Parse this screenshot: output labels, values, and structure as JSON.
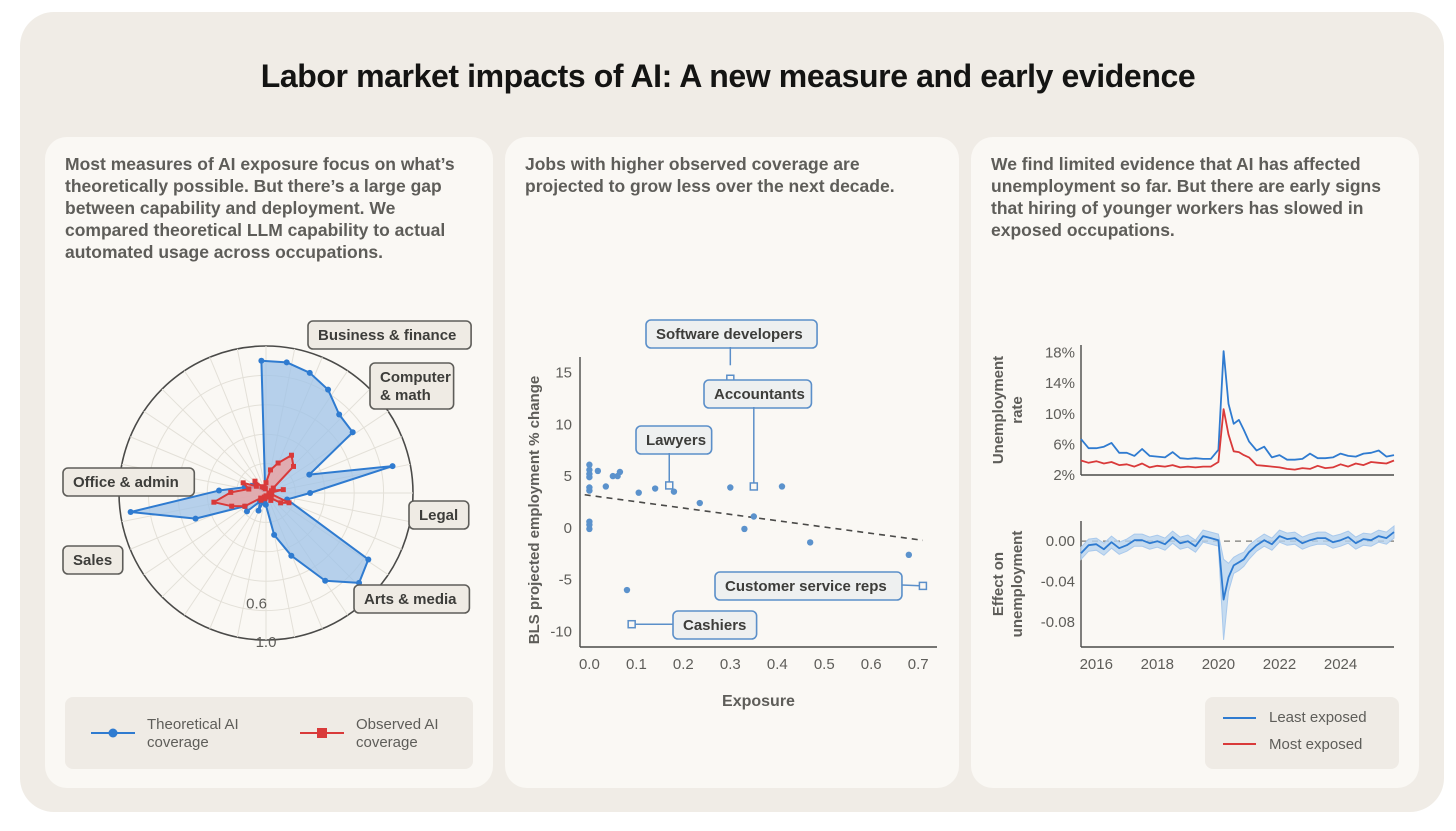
{
  "title": "Labor market impacts of AI: A new measure and early evidence",
  "panels": [
    {
      "text": "Most measures of AI exposure focus on what’s theoretically possible. But there’s a large gap between capability and deployment. We compared theoretical LLM capability to actual automated usage across occupations."
    },
    {
      "text": "Jobs with higher observed coverage are projected to grow less over the next decade."
    },
    {
      "text": "We find limited evidence that AI has affected unemployment so far. But there are early signs that hiring of younger workers has slowed in exposed occupations."
    }
  ],
  "colors": {
    "blue": "#2f7bd0",
    "blue_fill": "#9fc3e8",
    "red": "#d93a3a",
    "red_fill": "#eba3a3",
    "point": "#5b92cc",
    "grid": "#e3e0d8",
    "axis": "#4a4a48",
    "label_bg": "#efebe4",
    "label_border": "#5e5d59",
    "callout_border": "#5b8fc9",
    "callout_bg": "#eef0f0"
  },
  "chart_data": [
    {
      "type": "radar",
      "radial_tick_labels": [
        "0.6",
        "1.0"
      ],
      "rmax": 1.0,
      "category_labels": [
        "Business & finance",
        "Computer & math",
        "Legal",
        "Arts & media",
        "Sales",
        "Office & admin"
      ],
      "series": [
        {
          "name": "Theoretical AI coverage",
          "points": [
            [
              -2,
              0.9
            ],
            [
              9,
              0.9
            ],
            [
              20,
              0.87
            ],
            [
              31,
              0.82
            ],
            [
              43,
              0.73
            ],
            [
              55,
              0.72
            ],
            [
              67,
              0.32
            ],
            [
              78,
              0.88
            ],
            [
              90,
              0.3
            ],
            [
              107,
              0.15
            ],
            [
              123,
              0.83
            ],
            [
              134,
              0.88
            ],
            [
              146,
              0.72
            ],
            [
              158,
              0.46
            ],
            [
              169,
              0.29
            ],
            [
              181,
              0.08
            ],
            [
              192,
              0.05
            ],
            [
              203,
              0.13
            ],
            [
              215,
              0.07
            ],
            [
              226,
              0.18
            ],
            [
              238,
              0.17
            ],
            [
              250,
              0.51
            ],
            [
              262,
              0.93
            ],
            [
              273,
              0.32
            ],
            [
              285,
              0.15
            ],
            [
              296,
              0.11
            ],
            [
              308,
              0.09
            ],
            [
              320,
              0.05
            ],
            [
              331,
              0.03
            ],
            [
              342,
              0.03
            ],
            [
              351,
              0.04
            ]
          ]
        },
        {
          "name": "Observed AI coverage",
          "points": [
            [
              0,
              0.07
            ],
            [
              11,
              0.16
            ],
            [
              22,
              0.22
            ],
            [
              34,
              0.31
            ],
            [
              46,
              0.26
            ],
            [
              56,
              0.06
            ],
            [
              68,
              0.04
            ],
            [
              79,
              0.12
            ],
            [
              90,
              0.02
            ],
            [
              102,
              0.04
            ],
            [
              113,
              0.17
            ],
            [
              124,
              0.12
            ],
            [
              135,
              0.05
            ],
            [
              147,
              0.06
            ],
            [
              158,
              0.03
            ],
            [
              170,
              0.02
            ],
            [
              181,
              0.02
            ],
            [
              192,
              0.04
            ],
            [
              203,
              0.03
            ],
            [
              215,
              0.06
            ],
            [
              226,
              0.05
            ],
            [
              238,
              0.17
            ],
            [
              249,
              0.25
            ],
            [
              260,
              0.36
            ],
            [
              271,
              0.24
            ],
            [
              283,
              0.12
            ],
            [
              294,
              0.17
            ],
            [
              305,
              0.08
            ],
            [
              317,
              0.11
            ],
            [
              328,
              0.05
            ],
            [
              340,
              0.04
            ],
            [
              351,
              0.03
            ]
          ]
        }
      ],
      "legend": [
        "Theoretical AI coverage",
        "Observed AI coverage"
      ]
    },
    {
      "type": "scatter",
      "xlabel": "Exposure",
      "ylabel": "BLS projected employment % change",
      "xlim": [
        -0.02,
        0.74
      ],
      "ylim": [
        -11.5,
        16.5
      ],
      "x_ticks": [
        "0.0",
        "0.1",
        "0.2",
        "0.3",
        "0.4",
        "0.5",
        "0.6",
        "0.7"
      ],
      "y_ticks": [
        "15",
        "10",
        "5",
        "0",
        "-5",
        "-10"
      ],
      "points": [
        [
          0.0,
          6.1
        ],
        [
          0.0,
          5.6
        ],
        [
          0.0,
          5.2
        ],
        [
          0.0,
          4.9
        ],
        [
          0.0,
          3.9
        ],
        [
          0.0,
          3.6
        ],
        [
          0.0,
          0.6
        ],
        [
          0.0,
          0.3
        ],
        [
          0.0,
          -0.1
        ],
        [
          0.018,
          5.5
        ],
        [
          0.035,
          4.0
        ],
        [
          0.05,
          5.0
        ],
        [
          0.06,
          5.0
        ],
        [
          0.065,
          5.4
        ],
        [
          0.08,
          -6.0
        ],
        [
          0.105,
          3.4
        ],
        [
          0.14,
          3.8
        ],
        [
          0.18,
          3.5
        ],
        [
          0.235,
          2.4
        ],
        [
          0.3,
          3.9
        ],
        [
          0.33,
          -0.1
        ],
        [
          0.35,
          1.1
        ],
        [
          0.41,
          4.0
        ],
        [
          0.47,
          -1.4
        ],
        [
          0.68,
          -2.6
        ]
      ],
      "trend_line": {
        "x": [
          -0.01,
          0.71
        ],
        "y": [
          3.2,
          -1.2
        ]
      },
      "callouts": [
        {
          "label": "Software developers",
          "x": 0.3,
          "y": 15.7
        },
        {
          "label": "Accountants",
          "x": 0.35,
          "y": 4.0
        },
        {
          "label": "Lawyers",
          "x": 0.17,
          "y": 4.1
        },
        {
          "label": "Customer service reps",
          "x": 0.71,
          "y": -5.6
        },
        {
          "label": "Cashiers",
          "x": 0.09,
          "y": -9.3
        }
      ]
    },
    {
      "type": "line",
      "ylabel": "Unemployment rate",
      "y_ticks": [
        "18%",
        "14%",
        "10%",
        "6%",
        "2%"
      ],
      "ylim": [
        2,
        19
      ],
      "series": [
        {
          "name": "Least exposed",
          "x": [
            2015.5,
            2015.75,
            2016.0,
            2016.25,
            2016.5,
            2016.75,
            2017.0,
            2017.25,
            2017.5,
            2017.75,
            2018.0,
            2018.25,
            2018.5,
            2018.75,
            2019.0,
            2019.25,
            2019.5,
            2019.75,
            2020.0,
            2020.17,
            2020.33,
            2020.5,
            2020.67,
            2020.83,
            2021.0,
            2021.25,
            2021.5,
            2021.75,
            2022.0,
            2022.25,
            2022.5,
            2022.75,
            2023.0,
            2023.25,
            2023.5,
            2023.75,
            2024.0,
            2024.25,
            2024.5,
            2024.75,
            2025.0,
            2025.25,
            2025.5,
            2025.75
          ],
          "values": [
            6.7,
            5.5,
            5.5,
            5.7,
            6.2,
            4.9,
            4.9,
            4.5,
            5.4,
            4.5,
            4.4,
            4.3,
            5.0,
            4.2,
            4.1,
            4.2,
            4.1,
            4.1,
            5.3,
            18.2,
            11.3,
            8.7,
            9.2,
            7.9,
            6.4,
            5.2,
            5.7,
            4.3,
            4.6,
            4.0,
            4.0,
            4.1,
            4.8,
            4.2,
            4.2,
            4.3,
            4.8,
            4.5,
            4.4,
            4.8,
            4.9,
            5.2,
            4.4,
            4.6
          ]
        },
        {
          "name": "Most exposed",
          "x": [
            2015.5,
            2015.75,
            2016.0,
            2016.25,
            2016.5,
            2016.75,
            2017.0,
            2017.25,
            2017.5,
            2017.75,
            2018.0,
            2018.25,
            2018.5,
            2018.75,
            2019.0,
            2019.25,
            2019.5,
            2019.75,
            2020.0,
            2020.17,
            2020.33,
            2020.5,
            2020.67,
            2020.83,
            2021.0,
            2021.25,
            2021.5,
            2021.75,
            2022.0,
            2022.25,
            2022.5,
            2022.75,
            2023.0,
            2023.25,
            2023.5,
            2023.75,
            2024.0,
            2024.25,
            2024.5,
            2024.75,
            2025.0,
            2025.25,
            2025.5,
            2025.75
          ],
          "values": [
            3.9,
            3.6,
            3.8,
            3.5,
            3.7,
            3.3,
            3.4,
            3.1,
            3.5,
            3.0,
            3.2,
            3.1,
            3.3,
            3.0,
            3.1,
            3.0,
            3.1,
            3.1,
            3.7,
            10.6,
            7.3,
            5.1,
            5.0,
            4.6,
            4.3,
            3.3,
            3.2,
            3.1,
            3.0,
            2.8,
            2.7,
            2.9,
            2.8,
            3.2,
            2.9,
            3.0,
            3.4,
            3.1,
            3.5,
            3.3,
            3.7,
            3.6,
            3.5,
            3.9
          ]
        }
      ],
      "legend": [
        "Least exposed",
        "Most exposed"
      ]
    },
    {
      "type": "line",
      "ylabel": "Effect on unemployment",
      "xlim": [
        2015.5,
        2025.75
      ],
      "x_ticks": [
        "2016",
        "2018",
        "2020",
        "2022",
        "2024"
      ],
      "y_ticks": [
        "0.00",
        "-0.04",
        "-0.08"
      ],
      "ylim": [
        -0.105,
        0.02
      ],
      "reference_line": 0.0,
      "series": [
        {
          "name": "Effect",
          "x": [
            2015.5,
            2015.75,
            2016.0,
            2016.25,
            2016.5,
            2016.75,
            2017.0,
            2017.25,
            2017.5,
            2017.75,
            2018.0,
            2018.25,
            2018.5,
            2018.75,
            2019.0,
            2019.25,
            2019.5,
            2019.75,
            2020.0,
            2020.17,
            2020.33,
            2020.5,
            2020.67,
            2020.83,
            2021.0,
            2021.25,
            2021.5,
            2021.75,
            2022.0,
            2022.25,
            2022.5,
            2022.75,
            2023.0,
            2023.25,
            2023.5,
            2023.75,
            2024.0,
            2024.25,
            2024.5,
            2024.75,
            2025.0,
            2025.25,
            2025.5,
            2025.75
          ],
          "values": [
            -0.012,
            -0.004,
            -0.003,
            -0.008,
            -0.001,
            -0.007,
            -0.004,
            0.001,
            0.001,
            -0.002,
            0.0,
            -0.003,
            0.004,
            -0.002,
            0.0,
            -0.005,
            0.005,
            0.003,
            0.001,
            -0.058,
            -0.036,
            -0.024,
            -0.021,
            -0.018,
            -0.011,
            -0.004,
            0.001,
            -0.003,
            0.005,
            0.002,
            0.003,
            -0.002,
            0.001,
            0.003,
            0.003,
            -0.001,
            0.001,
            0.004,
            -0.002,
            0.002,
            0.001,
            0.005,
            0.003,
            0.009
          ],
          "ci_low": [
            -0.018,
            -0.01,
            -0.009,
            -0.014,
            -0.007,
            -0.013,
            -0.01,
            -0.005,
            -0.005,
            -0.008,
            -0.006,
            -0.009,
            -0.002,
            -0.008,
            -0.006,
            -0.011,
            -0.001,
            -0.003,
            -0.005,
            -0.098,
            -0.05,
            -0.032,
            -0.029,
            -0.025,
            -0.018,
            -0.01,
            -0.005,
            -0.009,
            -0.001,
            -0.004,
            -0.003,
            -0.008,
            -0.005,
            -0.003,
            -0.003,
            -0.007,
            -0.005,
            -0.002,
            -0.008,
            -0.004,
            -0.005,
            -0.001,
            -0.003,
            0.003
          ],
          "ci_high": [
            -0.006,
            0.002,
            0.003,
            -0.002,
            0.005,
            -0.001,
            0.002,
            0.007,
            0.007,
            0.004,
            0.006,
            0.003,
            0.01,
            0.004,
            0.006,
            0.001,
            0.011,
            0.009,
            0.007,
            -0.018,
            -0.022,
            -0.016,
            -0.013,
            -0.011,
            -0.004,
            0.002,
            0.007,
            0.003,
            0.011,
            0.008,
            0.009,
            0.004,
            0.007,
            0.009,
            0.009,
            0.005,
            0.007,
            0.01,
            0.004,
            0.008,
            0.007,
            0.011,
            0.009,
            0.015
          ]
        }
      ]
    }
  ]
}
